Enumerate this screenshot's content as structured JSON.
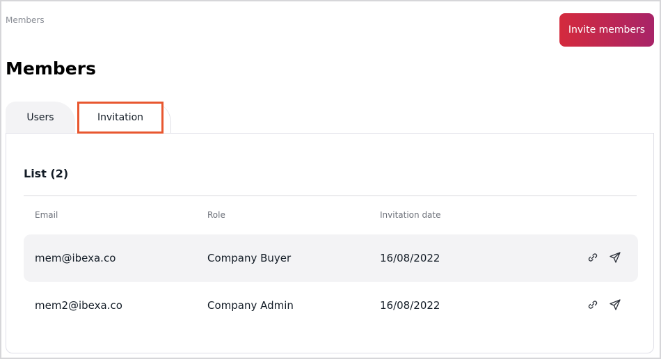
{
  "breadcrumb": "Members",
  "invite_button": "Invite members",
  "title": "Members",
  "tabs": [
    {
      "label": "Users",
      "active": false
    },
    {
      "label": "Invitation",
      "active": true
    }
  ],
  "list": {
    "title": "List (2)",
    "columns": [
      "Email",
      "Role",
      "Invitation date"
    ],
    "rows": [
      {
        "email": "mem@ibexa.co",
        "role": "Company Buyer",
        "date": "16/08/2022",
        "actions": [
          "link-icon",
          "send-icon"
        ]
      },
      {
        "email": "mem2@ibexa.co",
        "role": "Company Admin",
        "date": "16/08/2022",
        "actions": [
          "link-icon",
          "send-icon"
        ]
      }
    ]
  },
  "colors": {
    "accent_start": "#d42a3d",
    "accent_end": "#a82468",
    "highlight": "#e8572f"
  }
}
